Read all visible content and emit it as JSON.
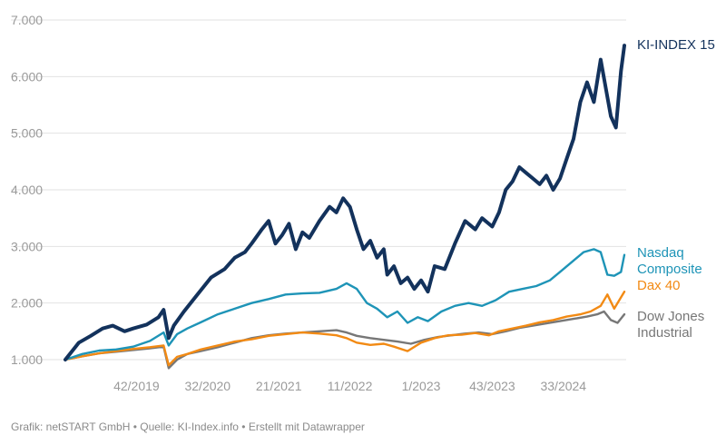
{
  "footer": {
    "text": "Grafik: netSTART GmbH • Quelle: KI-Index.info • Erstellt mit Datawrapper"
  },
  "colors": {
    "ki_index": "#13325c",
    "nasdaq": "#1e94b7",
    "dax": "#f28a14",
    "dow": "#777777",
    "grid": "#e2e2e2",
    "tick_text": "#9a9a9a"
  },
  "chart_data": {
    "type": "line",
    "title": "",
    "xlabel": "",
    "ylabel": "",
    "grid": true,
    "ylim": [
      1000,
      7000
    ],
    "y_ticks": [
      1000,
      2000,
      3000,
      4000,
      5000,
      6000,
      7000
    ],
    "y_tick_labels": [
      "1.000",
      "2.000",
      "3.000",
      "4.000",
      "5.000",
      "6.000",
      "7.000"
    ],
    "x_ticks": [
      "42/2019",
      "32/2020",
      "21/2021",
      "11/2022",
      "1/2023",
      "43/2023",
      "33/2024"
    ],
    "x_tick_values": [
      42,
      84,
      126,
      168,
      210,
      252,
      294
    ],
    "x_range": [
      0,
      330
    ],
    "series": [
      {
        "name": "KI-INDEX 15",
        "color_key": "ki_index",
        "label_lines": [
          "KI-INDEX 15"
        ],
        "points": [
          [
            0,
            1000
          ],
          [
            8,
            1300
          ],
          [
            15,
            1420
          ],
          [
            22,
            1550
          ],
          [
            28,
            1600
          ],
          [
            35,
            1500
          ],
          [
            40,
            1550
          ],
          [
            48,
            1620
          ],
          [
            55,
            1750
          ],
          [
            58,
            1880
          ],
          [
            61,
            1380
          ],
          [
            64,
            1600
          ],
          [
            70,
            1850
          ],
          [
            78,
            2150
          ],
          [
            86,
            2450
          ],
          [
            94,
            2600
          ],
          [
            100,
            2800
          ],
          [
            106,
            2900
          ],
          [
            110,
            3050
          ],
          [
            116,
            3300
          ],
          [
            120,
            3450
          ],
          [
            124,
            3050
          ],
          [
            128,
            3200
          ],
          [
            132,
            3400
          ],
          [
            136,
            2950
          ],
          [
            140,
            3250
          ],
          [
            144,
            3150
          ],
          [
            150,
            3450
          ],
          [
            156,
            3700
          ],
          [
            160,
            3600
          ],
          [
            164,
            3850
          ],
          [
            168,
            3700
          ],
          [
            172,
            3300
          ],
          [
            176,
            2950
          ],
          [
            180,
            3100
          ],
          [
            184,
            2800
          ],
          [
            188,
            2950
          ],
          [
            190,
            2500
          ],
          [
            194,
            2650
          ],
          [
            198,
            2350
          ],
          [
            202,
            2450
          ],
          [
            206,
            2250
          ],
          [
            210,
            2400
          ],
          [
            214,
            2200
          ],
          [
            218,
            2650
          ],
          [
            224,
            2600
          ],
          [
            230,
            3050
          ],
          [
            236,
            3450
          ],
          [
            242,
            3300
          ],
          [
            246,
            3500
          ],
          [
            252,
            3350
          ],
          [
            256,
            3600
          ],
          [
            260,
            4000
          ],
          [
            264,
            4150
          ],
          [
            268,
            4400
          ],
          [
            272,
            4300
          ],
          [
            276,
            4200
          ],
          [
            280,
            4100
          ],
          [
            284,
            4250
          ],
          [
            288,
            4000
          ],
          [
            292,
            4200
          ],
          [
            296,
            4550
          ],
          [
            300,
            4900
          ],
          [
            304,
            5550
          ],
          [
            308,
            5900
          ],
          [
            312,
            5550
          ],
          [
            316,
            6300
          ],
          [
            319,
            5800
          ],
          [
            322,
            5300
          ],
          [
            325,
            5100
          ],
          [
            328,
            6100
          ],
          [
            330,
            6550
          ]
        ]
      },
      {
        "name": "Nasdaq Composite",
        "color_key": "nasdaq",
        "label_lines": [
          "Nasdaq",
          "Composite"
        ],
        "points": [
          [
            0,
            1000
          ],
          [
            10,
            1100
          ],
          [
            20,
            1160
          ],
          [
            30,
            1180
          ],
          [
            40,
            1230
          ],
          [
            50,
            1330
          ],
          [
            58,
            1480
          ],
          [
            61,
            1250
          ],
          [
            66,
            1450
          ],
          [
            72,
            1550
          ],
          [
            80,
            1660
          ],
          [
            90,
            1800
          ],
          [
            100,
            1900
          ],
          [
            110,
            2000
          ],
          [
            120,
            2070
          ],
          [
            130,
            2150
          ],
          [
            140,
            2170
          ],
          [
            150,
            2180
          ],
          [
            160,
            2250
          ],
          [
            166,
            2350
          ],
          [
            172,
            2250
          ],
          [
            178,
            2000
          ],
          [
            184,
            1900
          ],
          [
            190,
            1750
          ],
          [
            196,
            1850
          ],
          [
            202,
            1650
          ],
          [
            208,
            1750
          ],
          [
            214,
            1680
          ],
          [
            222,
            1850
          ],
          [
            230,
            1950
          ],
          [
            238,
            2000
          ],
          [
            246,
            1950
          ],
          [
            254,
            2050
          ],
          [
            262,
            2200
          ],
          [
            270,
            2250
          ],
          [
            278,
            2300
          ],
          [
            286,
            2400
          ],
          [
            292,
            2550
          ],
          [
            300,
            2750
          ],
          [
            306,
            2900
          ],
          [
            312,
            2950
          ],
          [
            316,
            2900
          ],
          [
            320,
            2500
          ],
          [
            324,
            2480
          ],
          [
            328,
            2550
          ],
          [
            330,
            2850
          ]
        ]
      },
      {
        "name": "Dax 40",
        "color_key": "dax",
        "label_lines": [
          "Dax 40"
        ],
        "points": [
          [
            0,
            1000
          ],
          [
            10,
            1060
          ],
          [
            20,
            1110
          ],
          [
            30,
            1150
          ],
          [
            40,
            1190
          ],
          [
            50,
            1220
          ],
          [
            58,
            1250
          ],
          [
            61,
            900
          ],
          [
            66,
            1050
          ],
          [
            72,
            1100
          ],
          [
            80,
            1180
          ],
          [
            90,
            1250
          ],
          [
            100,
            1320
          ],
          [
            110,
            1360
          ],
          [
            120,
            1420
          ],
          [
            130,
            1450
          ],
          [
            140,
            1480
          ],
          [
            150,
            1460
          ],
          [
            160,
            1430
          ],
          [
            166,
            1380
          ],
          [
            172,
            1300
          ],
          [
            180,
            1260
          ],
          [
            188,
            1280
          ],
          [
            194,
            1230
          ],
          [
            202,
            1150
          ],
          [
            210,
            1300
          ],
          [
            218,
            1380
          ],
          [
            226,
            1430
          ],
          [
            234,
            1440
          ],
          [
            242,
            1470
          ],
          [
            250,
            1430
          ],
          [
            256,
            1500
          ],
          [
            264,
            1550
          ],
          [
            272,
            1600
          ],
          [
            280,
            1660
          ],
          [
            288,
            1700
          ],
          [
            296,
            1760
          ],
          [
            304,
            1800
          ],
          [
            310,
            1850
          ],
          [
            316,
            1950
          ],
          [
            320,
            2150
          ],
          [
            324,
            1900
          ],
          [
            328,
            2100
          ],
          [
            330,
            2200
          ]
        ]
      },
      {
        "name": "Dow Jones Industrial",
        "color_key": "dow",
        "label_lines": [
          "Dow Jones",
          "Industrial"
        ],
        "points": [
          [
            0,
            1000
          ],
          [
            10,
            1060
          ],
          [
            20,
            1110
          ],
          [
            30,
            1140
          ],
          [
            40,
            1170
          ],
          [
            50,
            1200
          ],
          [
            58,
            1230
          ],
          [
            61,
            850
          ],
          [
            66,
            1000
          ],
          [
            72,
            1100
          ],
          [
            80,
            1150
          ],
          [
            90,
            1220
          ],
          [
            100,
            1300
          ],
          [
            110,
            1380
          ],
          [
            120,
            1430
          ],
          [
            130,
            1460
          ],
          [
            140,
            1480
          ],
          [
            150,
            1500
          ],
          [
            160,
            1520
          ],
          [
            166,
            1480
          ],
          [
            172,
            1420
          ],
          [
            180,
            1380
          ],
          [
            188,
            1350
          ],
          [
            196,
            1320
          ],
          [
            204,
            1280
          ],
          [
            212,
            1350
          ],
          [
            220,
            1400
          ],
          [
            228,
            1430
          ],
          [
            236,
            1460
          ],
          [
            244,
            1480
          ],
          [
            252,
            1450
          ],
          [
            260,
            1500
          ],
          [
            268,
            1560
          ],
          [
            276,
            1600
          ],
          [
            284,
            1640
          ],
          [
            292,
            1680
          ],
          [
            300,
            1720
          ],
          [
            308,
            1760
          ],
          [
            314,
            1800
          ],
          [
            318,
            1850
          ],
          [
            322,
            1700
          ],
          [
            326,
            1650
          ],
          [
            330,
            1800
          ]
        ]
      }
    ]
  }
}
